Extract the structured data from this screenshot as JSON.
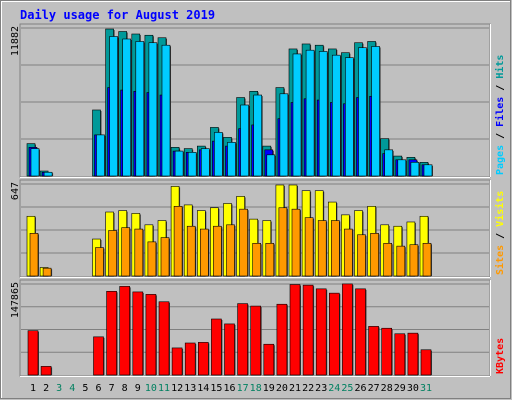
{
  "chart_data": {
    "type": "bar",
    "title": "Daily usage for August 2019",
    "categories": [
      "1",
      "2",
      "3",
      "4",
      "5",
      "6",
      "7",
      "8",
      "9",
      "10",
      "11",
      "12",
      "13",
      "14",
      "15",
      "16",
      "17",
      "18",
      "19",
      "20",
      "21",
      "22",
      "23",
      "24",
      "25",
      "26",
      "27",
      "28",
      "29",
      "30",
      "31"
    ],
    "weekend_days": [
      "3",
      "4",
      "10",
      "11",
      "17",
      "18",
      "24",
      "25",
      "31"
    ],
    "panels": [
      {
        "id": "hits",
        "ymax": 11882,
        "ylabel_parts": [
          {
            "text": "Pages",
            "color": "#00ccff"
          },
          {
            "text": " / ",
            "color": "#000000"
          },
          {
            "text": "Files",
            "color": "#0000ff"
          },
          {
            "text": " / ",
            "color": "#000000"
          },
          {
            "text": "Hits",
            "color": "#009999"
          }
        ],
        "series": [
          {
            "name": "Hits",
            "color": "#009999",
            "values": [
              2600,
              400,
              0,
              0,
              0,
              5300,
              11800,
              11600,
              11400,
              11300,
              11100,
              2300,
              2200,
              2400,
              3900,
              3100,
              6300,
              6800,
              2400,
              7100,
              10200,
              10600,
              10500,
              10200,
              9900,
              10700,
              10800,
              3000,
              1600,
              1500,
              1100
            ]
          },
          {
            "name": "Files",
            "color": "#0000ff",
            "values": [
              2300,
              300,
              0,
              0,
              0,
              3300,
              7100,
              6900,
              6800,
              6700,
              6500,
              2000,
              1900,
              2100,
              2800,
              2400,
              3800,
              4100,
              2100,
              4600,
              5900,
              6200,
              6100,
              5900,
              5800,
              6300,
              6400,
              1800,
              1300,
              1300,
              900
            ]
          },
          {
            "name": "Pages",
            "color": "#00ccff",
            "values": [
              2200,
              300,
              0,
              0,
              0,
              3300,
              11200,
              11000,
              10800,
              10700,
              10500,
              2000,
              1900,
              2200,
              3500,
              2700,
              5700,
              6500,
              1700,
              6600,
              9800,
              10100,
              10000,
              9700,
              9500,
              10300,
              10400,
              2100,
              1300,
              1100,
              900
            ]
          }
        ]
      },
      {
        "id": "visits",
        "ymax": 647,
        "ylabel_parts": [
          {
            "text": "Sites",
            "color": "#ff9900"
          },
          {
            "text": " / ",
            "color": "#000000"
          },
          {
            "text": "Visits",
            "color": "#ffff00"
          }
        ],
        "series": [
          {
            "name": "Visits",
            "color": "#ffff00",
            "values": [
              420,
              60,
              0,
              0,
              0,
              260,
              450,
              460,
              440,
              360,
              390,
              630,
              500,
              460,
              480,
              510,
              560,
              400,
              390,
              640,
              640,
              600,
              600,
              520,
              430,
              460,
              490,
              360,
              350,
              380,
              420
            ]
          },
          {
            "name": "Sites",
            "color": "#ff9900",
            "values": [
              300,
              55,
              0,
              0,
              0,
              200,
              320,
              340,
              330,
              240,
              270,
              490,
              350,
              330,
              350,
              360,
              470,
              230,
              230,
              480,
              470,
              410,
              390,
              390,
              330,
              290,
              300,
              230,
              210,
              220,
              230
            ]
          }
        ]
      },
      {
        "id": "kbytes",
        "ymax": 147865,
        "ylabel_parts": [
          {
            "text": "KBytes",
            "color": "#ff0000"
          }
        ],
        "series": [
          {
            "name": "KBytes",
            "color": "#ff0000",
            "values": [
              72000,
              14000,
              0,
              0,
              0,
              62000,
              136000,
              144000,
              135000,
              131000,
              119000,
              44000,
              52000,
              53000,
              91000,
              83000,
              116000,
              112000,
              50000,
              115000,
              147000,
              146000,
              140000,
              133000,
              148000,
              140000,
              79000,
              76000,
              67000,
              68000,
              41000
            ]
          }
        ]
      }
    ]
  }
}
